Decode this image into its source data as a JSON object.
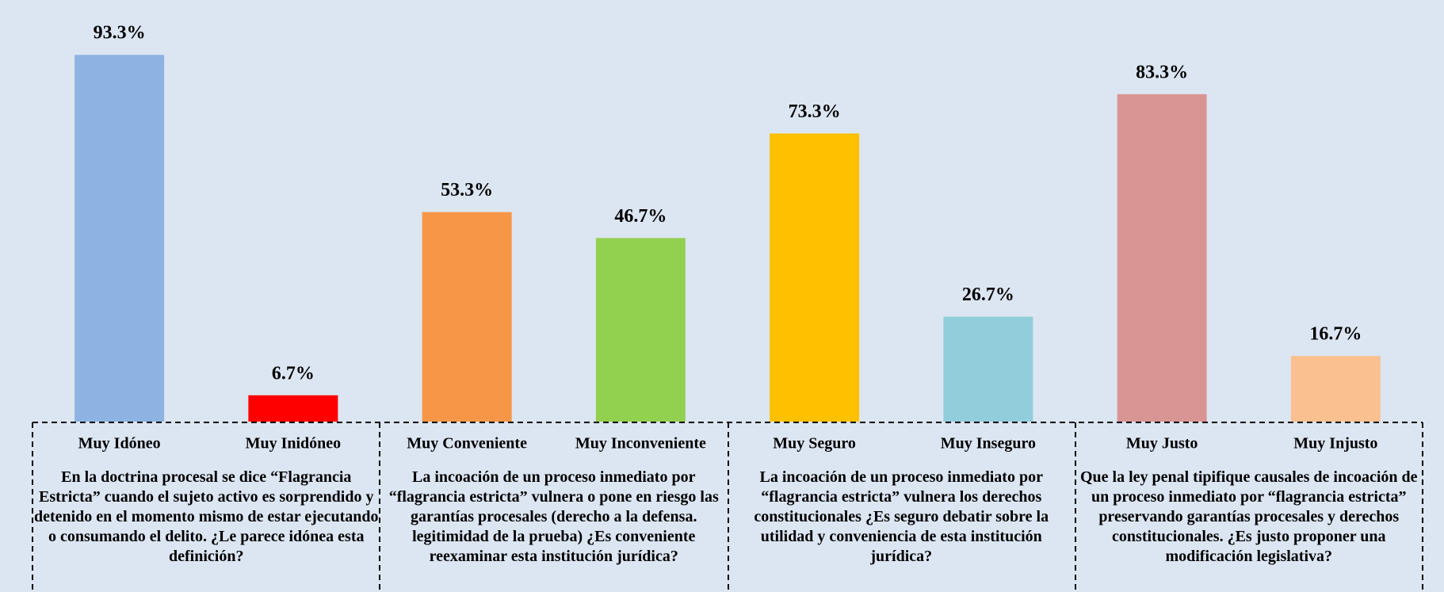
{
  "chart_data": {
    "type": "bar",
    "categories": [
      "Muy Idóneo",
      "Muy Inidóneo",
      "Muy Conveniente",
      "Muy Inconveniente",
      "Muy Seguro",
      "Muy Inseguro",
      "Muy Justo",
      "Muy Injusto"
    ],
    "values": [
      93.3,
      6.7,
      53.3,
      46.7,
      73.3,
      26.7,
      83.3,
      16.7
    ],
    "value_labels": [
      "93.3%",
      "6.7%",
      "53.3%",
      "46.7%",
      "73.3%",
      "26.7%",
      "83.3%",
      "16.7%"
    ],
    "colors": [
      "#8db3e2",
      "#ff0000",
      "#f79646",
      "#92d050",
      "#ffc000",
      "#92cddc",
      "#d99594",
      "#fac090"
    ],
    "ylim": [
      0,
      100
    ],
    "questions": [
      "En la doctrina procesal se dice “Flagrancia Estricta” cuando el sujeto activo es sorprendido y detenido en el momento mismo de estar ejecutando o consumando el delito. ¿Le parece idónea esta definición?",
      "La incoación de un proceso inmediato por “flagrancia estricta” vulnera o pone en riesgo las garantías procesales (derecho a la defensa. legitimidad de la prueba) ¿Es conveniente reexaminar esta institución jurídica?",
      "La incoación de un proceso inmediato por “flagrancia estricta” vulnera los derechos constitucionales ¿Es seguro debatir sobre la utilidad y conveniencia de esta institución jurídica?",
      "Que la ley penal tipifique causales de incoación de un proceso inmediato por “flagrancia estricta” preservando garantías procesales y derechos constitucionales. ¿Es justo proponer una modificación legislativa?"
    ]
  }
}
